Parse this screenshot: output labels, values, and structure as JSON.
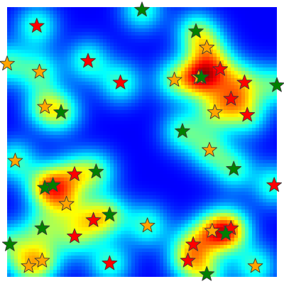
{
  "chart_data": {
    "type": "heatmap",
    "title": "",
    "xlabel": "",
    "ylabel": "",
    "xlim": [
      0,
      1
    ],
    "ylim": [
      0,
      1
    ],
    "grid": false,
    "legend": "none",
    "colormap": [
      "#00007f",
      "#0000ff",
      "#007fff",
      "#00ffff",
      "#7fff7f",
      "#ffff00",
      "#ff7f00",
      "#ff0000",
      "#7f0000"
    ],
    "series": [
      {
        "marker": "star",
        "color": "#ff0000",
        "points": [
          {
            "x": 0.11,
            "y": 0.93
          },
          {
            "x": 0.3,
            "y": 0.8
          },
          {
            "x": 0.42,
            "y": 0.72
          },
          {
            "x": 0.79,
            "y": 0.77
          },
          {
            "x": 0.88,
            "y": 0.72
          },
          {
            "x": 0.83,
            "y": 0.66
          },
          {
            "x": 0.89,
            "y": 0.6
          },
          {
            "x": 0.25,
            "y": 0.38
          },
          {
            "x": 0.32,
            "y": 0.21
          },
          {
            "x": 0.25,
            "y": 0.15
          },
          {
            "x": 0.69,
            "y": 0.12
          },
          {
            "x": 0.67,
            "y": 0.06
          },
          {
            "x": 0.83,
            "y": 0.18
          },
          {
            "x": 0.38,
            "y": 0.05
          },
          {
            "x": 0.99,
            "y": 0.34
          }
        ]
      },
      {
        "marker": "star",
        "color": "#ffa500",
        "points": [
          {
            "x": 0.0,
            "y": 0.79
          },
          {
            "x": 0.12,
            "y": 0.76
          },
          {
            "x": 0.14,
            "y": 0.63
          },
          {
            "x": 0.62,
            "y": 0.73
          },
          {
            "x": 0.71,
            "y": 0.74
          },
          {
            "x": 0.74,
            "y": 0.85
          },
          {
            "x": 0.77,
            "y": 0.61
          },
          {
            "x": 0.75,
            "y": 0.47
          },
          {
            "x": 0.03,
            "y": 0.43
          },
          {
            "x": 0.22,
            "y": 0.27
          },
          {
            "x": 0.52,
            "y": 0.19
          },
          {
            "x": 0.76,
            "y": 0.17
          },
          {
            "x": 0.13,
            "y": 0.06
          },
          {
            "x": 0.08,
            "y": 0.04
          },
          {
            "x": 0.92,
            "y": 0.04
          }
        ]
      },
      {
        "marker": "star",
        "color": "#008000",
        "points": [
          {
            "x": 0.5,
            "y": 0.99
          },
          {
            "x": 0.7,
            "y": 0.91
          },
          {
            "x": 0.72,
            "y": 0.74
          },
          {
            "x": 1.0,
            "y": 0.71
          },
          {
            "x": 0.2,
            "y": 0.61
          },
          {
            "x": 0.65,
            "y": 0.54
          },
          {
            "x": 0.84,
            "y": 0.4
          },
          {
            "x": 0.33,
            "y": 0.39
          },
          {
            "x": 0.14,
            "y": 0.33
          },
          {
            "x": 0.17,
            "y": 0.34
          },
          {
            "x": 0.38,
            "y": 0.23
          },
          {
            "x": 0.13,
            "y": 0.18
          },
          {
            "x": 0.81,
            "y": 0.16
          },
          {
            "x": 0.01,
            "y": 0.12
          },
          {
            "x": 0.74,
            "y": 0.01
          }
        ]
      }
    ]
  }
}
